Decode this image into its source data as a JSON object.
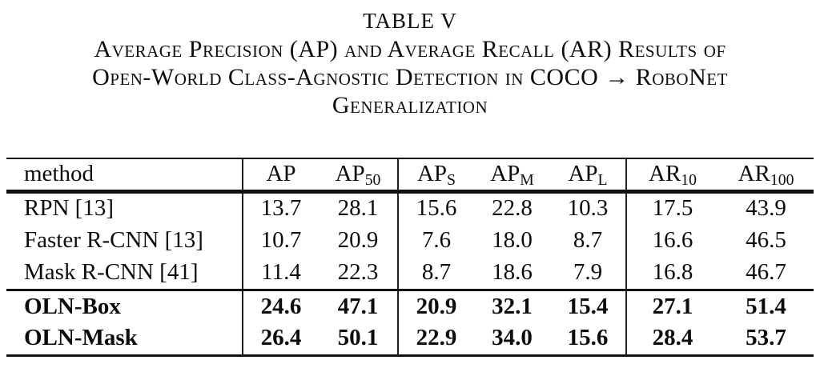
{
  "caption": {
    "label": "TABLE V",
    "lines": [
      "Average Precision (AP) and Average Recall (AR) Results of",
      "Open-World Class-Agnostic Detection in COCO → RoboNet",
      "Generalization"
    ]
  },
  "table": {
    "columns": [
      {
        "label": "method",
        "sub": ""
      },
      {
        "label": "AP",
        "sub": ""
      },
      {
        "label": "AP",
        "sub": "50"
      },
      {
        "label": "AP",
        "sub": "S"
      },
      {
        "label": "AP",
        "sub": "M"
      },
      {
        "label": "AP",
        "sub": "L"
      },
      {
        "label": "AR",
        "sub": "10"
      },
      {
        "label": "AR",
        "sub": "100"
      }
    ],
    "rows": [
      {
        "method": "RPN [13]",
        "bold": false,
        "values": [
          "13.7",
          "28.1",
          "15.6",
          "22.8",
          "10.3",
          "17.5",
          "43.9"
        ]
      },
      {
        "method": "Faster R-CNN [13]",
        "bold": false,
        "values": [
          "10.7",
          "20.9",
          "7.6",
          "18.0",
          "8.7",
          "16.6",
          "46.5"
        ]
      },
      {
        "method": "Mask R-CNN [41]",
        "bold": false,
        "values": [
          "11.4",
          "22.3",
          "8.7",
          "18.6",
          "7.9",
          "16.8",
          "46.7"
        ]
      },
      {
        "method": "OLN-Box",
        "bold": true,
        "values": [
          "24.6",
          "47.1",
          "20.9",
          "32.1",
          "15.4",
          "27.1",
          "51.4"
        ]
      },
      {
        "method": "OLN-Mask",
        "bold": true,
        "values": [
          "26.4",
          "50.1",
          "22.9",
          "34.0",
          "15.6",
          "28.4",
          "53.7"
        ]
      }
    ]
  }
}
